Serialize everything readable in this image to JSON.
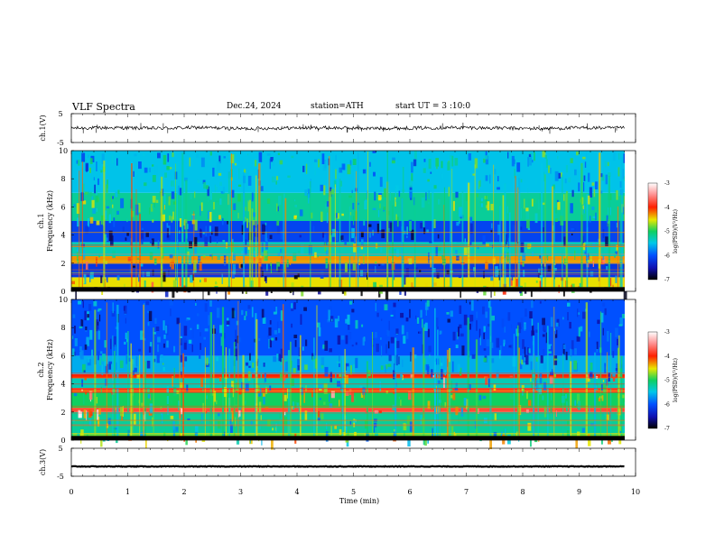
{
  "header": {
    "title": "VLF  Spectra",
    "date": "Dec.24, 2024",
    "station": "station=ATH",
    "start_ut": "start  UT  =    3  :10:0"
  },
  "chart_data": [
    {
      "type": "line",
      "name": "ch1-waveform",
      "ylabel": "ch.1(V)",
      "ylim": [
        -5,
        5
      ],
      "yticks": [
        "5",
        "-5"
      ],
      "xlim": [
        0,
        9.8
      ],
      "note_level": 0,
      "approx_level": [
        0,
        0.1,
        -0.1,
        0.2,
        -0.2,
        0,
        0.1,
        -0.1,
        0,
        0.2,
        0,
        -0.2,
        0.1,
        0
      ]
    },
    {
      "type": "heatmap",
      "name": "ch1-spectrogram",
      "ylabel": "ch.1",
      "ylabel2": "Frequency (kHz)",
      "ylim": [
        0,
        10
      ],
      "yticks": [
        "0",
        "2",
        "4",
        "6",
        "8",
        "10"
      ],
      "xlim": [
        0,
        10
      ],
      "bands": [
        {
          "from": 0,
          "to": 0.3,
          "level": -7
        },
        {
          "from": 0.3,
          "to": 1,
          "level": -4.5
        },
        {
          "from": 1,
          "to": 2,
          "level": -6.2
        },
        {
          "from": 2,
          "to": 2.5,
          "level": -4.3
        },
        {
          "from": 2.5,
          "to": 3.5,
          "level": -5.3
        },
        {
          "from": 3.5,
          "to": 5,
          "level": -6.1
        },
        {
          "from": 5,
          "to": 7,
          "level": -5.2
        },
        {
          "from": 7,
          "to": 10,
          "level": -5.5
        }
      ],
      "colorbar": {
        "label": "log(PSD)(V²/Hz)",
        "range": [
          -7,
          -3
        ],
        "ticks": [
          "-3",
          "-4",
          "-5",
          "-6",
          "-7"
        ]
      }
    },
    {
      "type": "heatmap",
      "name": "ch2-spectrogram",
      "ylabel": "ch.2",
      "ylabel2": "Frequency (kHz)",
      "ylim": [
        0,
        10
      ],
      "yticks": [
        "0",
        "2",
        "4",
        "6",
        "8",
        "10"
      ],
      "xlim": [
        0,
        10
      ],
      "bands": [
        {
          "from": 0,
          "to": 0.5,
          "level": -4.8
        },
        {
          "from": 0.5,
          "to": 2,
          "level": -5.2
        },
        {
          "from": 2,
          "to": 2.3,
          "level": -3.8
        },
        {
          "from": 2.3,
          "to": 3.4,
          "level": -5.0
        },
        {
          "from": 3.4,
          "to": 3.7,
          "level": -3.9
        },
        {
          "from": 3.7,
          "to": 4.4,
          "level": -5.3
        },
        {
          "from": 4.4,
          "to": 4.7,
          "level": -4.0
        },
        {
          "from": 4.7,
          "to": 6,
          "level": -5.6
        },
        {
          "from": 6,
          "to": 10,
          "level": -6.0
        }
      ],
      "colorbar": {
        "label": "log(PSD)(V²/Hz)",
        "range": [
          -7,
          -3
        ],
        "ticks": [
          "-3",
          "-4",
          "-5",
          "-6",
          "-7"
        ]
      }
    },
    {
      "type": "line",
      "name": "ch3-waveform",
      "ylabel": "ch.3(V)",
      "ylim": [
        -5,
        5
      ],
      "yticks": [
        "5",
        "-5"
      ],
      "xlim": [
        0,
        9.8
      ],
      "approx_level": -1.5
    }
  ],
  "xaxis": {
    "label": "Time (min)",
    "ticks": [
      "0",
      "1",
      "2",
      "3",
      "4",
      "5",
      "6",
      "7",
      "8",
      "9",
      "10"
    ],
    "range": [
      0,
      10
    ]
  },
  "colors": {
    "ink": "#000000"
  }
}
